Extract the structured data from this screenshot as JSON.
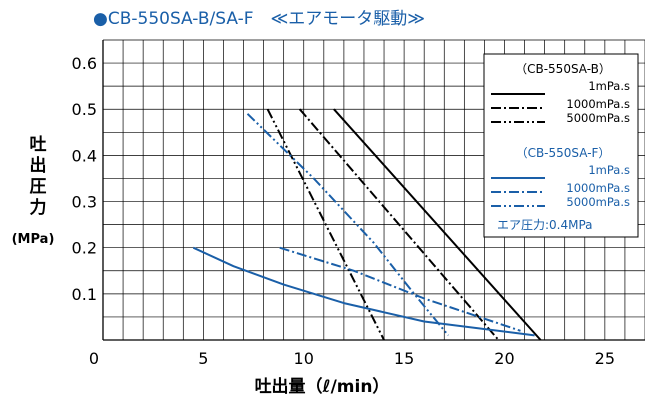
{
  "chart_data": {
    "type": "line",
    "title": "●CB-550SA-B/SA-F　≪エアモータ駆動≫",
    "xlabel": "吐出量（ℓ/min）",
    "ylabel": "吐出圧力",
    "ylabel_unit": "(MPa)",
    "xlim": [
      0,
      27
    ],
    "ylim": [
      0,
      0.65
    ],
    "x_ticks": [
      "0",
      "5",
      "10",
      "15",
      "20",
      "25"
    ],
    "y_ticks": [
      "0.1",
      "0.2",
      "0.3",
      "0.4",
      "0.5",
      "0.6"
    ],
    "grid": true,
    "legend_position": "top-right",
    "colors": {
      "black": "#000000",
      "blue": "#1a5fa8"
    },
    "legend": {
      "group_b_title": "（CB-550SA-B）",
      "group_f_title": "（CB-550SA-F）",
      "items_b": [
        "1mPa.s",
        "1000mPa.s",
        "5000mPa.s"
      ],
      "items_f": [
        "1mPa.s",
        "1000mPa.s",
        "5000mPa.s"
      ],
      "note": "エア圧力:0.4MPa"
    },
    "series": [
      {
        "model": "CB-550SA-B",
        "viscosity": "1mPa.s",
        "color": "black",
        "dash": "solid",
        "points": [
          [
            11.5,
            0.5
          ],
          [
            21.8,
            0.0
          ]
        ]
      },
      {
        "model": "CB-550SA-B",
        "viscosity": "1000mPa.s",
        "color": "black",
        "dash": "dashdot",
        "points": [
          [
            9.8,
            0.5
          ],
          [
            19.7,
            0.0
          ]
        ]
      },
      {
        "model": "CB-550SA-B",
        "viscosity": "5000mPa.s",
        "color": "black",
        "dash": "dashdotdot",
        "points": [
          [
            8.2,
            0.5
          ],
          [
            14.0,
            0.0
          ]
        ]
      },
      {
        "model": "CB-550SA-F",
        "viscosity": "1mPa.s",
        "color": "blue",
        "dash": "solid",
        "points": [
          [
            4.5,
            0.2
          ],
          [
            6.5,
            0.16
          ],
          [
            9,
            0.12
          ],
          [
            12,
            0.08
          ],
          [
            16,
            0.04
          ],
          [
            21.5,
            0.01
          ]
        ]
      },
      {
        "model": "CB-550SA-F",
        "viscosity": "1000mPa.s",
        "color": "blue",
        "dash": "dashdot",
        "points": [
          [
            8.8,
            0.2
          ],
          [
            12.5,
            0.15
          ],
          [
            16,
            0.09
          ],
          [
            20.8,
            0.02
          ]
        ]
      },
      {
        "model": "CB-550SA-F",
        "viscosity": "5000mPa.s",
        "color": "blue",
        "dash": "dashdotdot",
        "points": [
          [
            7.2,
            0.49
          ],
          [
            10.5,
            0.35
          ],
          [
            13.5,
            0.21
          ],
          [
            15.5,
            0.1
          ],
          [
            17.2,
            0.01
          ]
        ]
      }
    ]
  }
}
